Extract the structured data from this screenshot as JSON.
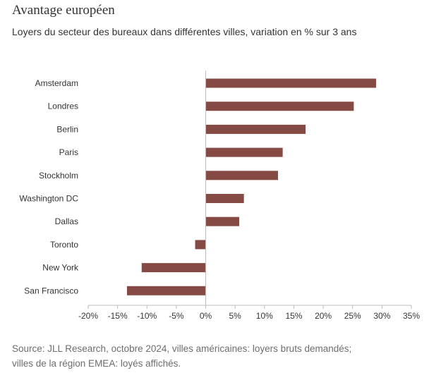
{
  "header": {
    "title": "Avantage européen",
    "subtitle": "Loyers du secteur des bureaux dans différentes villes, variation en % sur 3 ans"
  },
  "footer": {
    "source_line1": "Source: JLL Research, octobre 2024, villes américaines: loyers bruts demandés;",
    "source_line2": "villes de la région EMEA: loyés affichés."
  },
  "colors": {
    "bar": "#864a45",
    "axis": "#bbbbbb",
    "text": "#333333",
    "source": "#6d6d6d"
  },
  "chart_data": {
    "type": "bar",
    "orientation": "horizontal",
    "title": "Avantage européen",
    "subtitle": "Loyers du secteur des bureaux dans différentes villes, variation en % sur 3 ans",
    "xlabel": "",
    "ylabel": "",
    "categories": [
      "Amsterdam",
      "Londres",
      "Berlin",
      "Paris",
      "Stockholm",
      "Washington DC",
      "Dallas",
      "Toronto",
      "New York",
      "San Francisco"
    ],
    "values": [
      29,
      25.2,
      17,
      13.1,
      12.3,
      6.5,
      5.7,
      -1.8,
      -10.9,
      -13.4
    ],
    "xlim": [
      -20,
      35
    ],
    "ticks": [
      -20,
      -15,
      -10,
      -5,
      0,
      5,
      10,
      15,
      20,
      25,
      30,
      35
    ],
    "tick_labels": [
      "-20%",
      "-15%",
      "-10%",
      "-5%",
      "0%",
      "5%",
      "10%",
      "15%",
      "20%",
      "25%",
      "30%",
      "35%"
    ],
    "grid": false,
    "legend": "none"
  }
}
